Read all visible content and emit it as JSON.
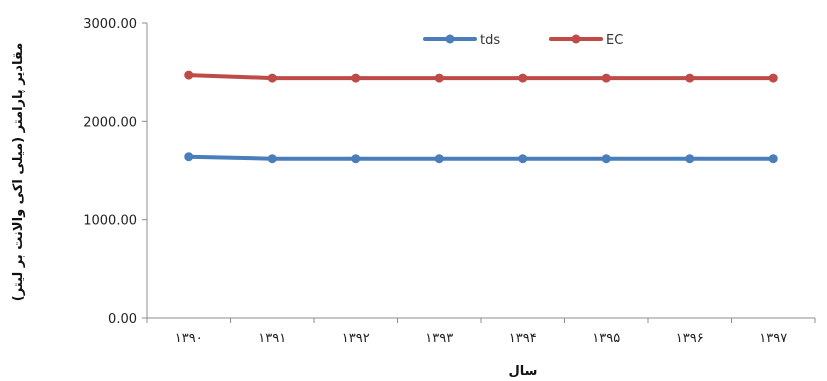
{
  "chart_data": {
    "type": "line",
    "categories": [
      "۱۳۹۰",
      "۱۳۹۱",
      "۱۳۹۲",
      "۱۳۹۳",
      "۱۳۹۴",
      "۱۳۹۵",
      "۱۳۹۶",
      "۱۳۹۷"
    ],
    "series": [
      {
        "name": "tds",
        "color": "#4a7ebb",
        "values": [
          1640,
          1620,
          1620,
          1620,
          1620,
          1620,
          1620,
          1620
        ]
      },
      {
        "name": "EC",
        "color": "#be4b48",
        "values": [
          2470,
          2440,
          2440,
          2440,
          2440,
          2440,
          2440,
          2440
        ]
      }
    ],
    "yticks": [
      "0.00",
      "1000.00",
      "2000.00",
      "3000.00"
    ],
    "ytick_values": [
      0,
      1000,
      2000,
      3000
    ],
    "ylim": [
      0,
      3000
    ],
    "xlabel": "سال",
    "ylabel": "مقادیر پارامتر (میلی اکی والانت بر لیتر)",
    "legend_position": "top",
    "grid": false
  }
}
